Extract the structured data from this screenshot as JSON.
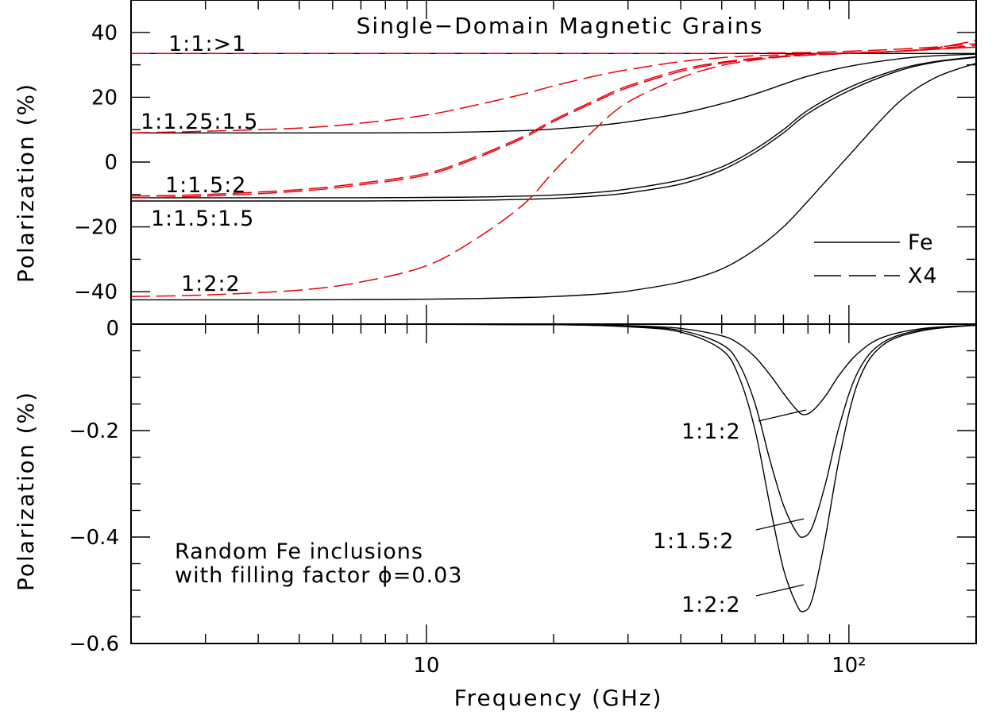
{
  "chart_data": [
    {
      "type": "line",
      "title": "Single−Domain Magnetic Grains",
      "xlabel": "",
      "ylabel": "Polarization (%)",
      "xscale": "log",
      "xlim": [
        2,
        200
      ],
      "ylim": [
        -50,
        50
      ],
      "y_ticks": [
        -40,
        -20,
        0,
        20,
        40
      ],
      "y_tick_labels": [
        "−40",
        "−20",
        "0",
        "20",
        "40"
      ],
      "legend": {
        "placement": "bottom-right",
        "entries": [
          {
            "label": "Fe",
            "style": "solid",
            "color": "#000000"
          },
          {
            "label": "X4",
            "style": "dashed",
            "color": "#000000"
          }
        ]
      },
      "colors": {
        "Fe": "#000000",
        "X4": "#e8000b"
      },
      "x": [
        2,
        3,
        5,
        7,
        10,
        13,
        17,
        20,
        25,
        30,
        40,
        50,
        60,
        70,
        80,
        100,
        130,
        160,
        200
      ],
      "series": [
        {
          "material": "Fe",
          "shape": "1:1:>1",
          "label_id": "s0",
          "values": [
            33.5,
            33.5,
            33.5,
            33.5,
            33.5,
            33.5,
            33.5,
            33.5,
            33.5,
            33.5,
            33.5,
            33.5,
            33.5,
            33.5,
            33.5,
            33.5,
            33.5,
            33.5,
            33.5
          ]
        },
        {
          "material": "Fe",
          "shape": "1:1.25:1.5",
          "label_id": "s1",
          "values": [
            9,
            9,
            9,
            9,
            9.1,
            9.3,
            9.7,
            10.2,
            11.2,
            12.4,
            15,
            18,
            21,
            24,
            26.5,
            29.5,
            31.8,
            32.8,
            33.3
          ]
        },
        {
          "material": "Fe",
          "shape": "1:1.5:2",
          "label_id": "s2",
          "values": [
            -11,
            -11,
            -11,
            -11,
            -10.9,
            -10.8,
            -10.5,
            -10.2,
            -9.4,
            -8.3,
            -5.5,
            -1.5,
            4,
            10,
            16,
            23,
            28.5,
            31,
            32.5
          ]
        },
        {
          "material": "Fe",
          "shape": "1:1.5:1.5",
          "label_id": "s3",
          "values": [
            -12,
            -12,
            -12,
            -12,
            -11.9,
            -11.8,
            -11.5,
            -11.2,
            -10.5,
            -9.5,
            -6.8,
            -2.5,
            3,
            9,
            15,
            22,
            28,
            30.8,
            32.3
          ]
        },
        {
          "material": "Fe",
          "shape": "1:2:2",
          "label_id": "s4",
          "values": [
            -42.5,
            -42.5,
            -42.5,
            -42.4,
            -42.3,
            -42.1,
            -41.8,
            -41.5,
            -40.8,
            -39.8,
            -37,
            -33,
            -27,
            -20,
            -12,
            2,
            18,
            26,
            30.5
          ]
        },
        {
          "material": "X4",
          "shape": "1:1:>1",
          "values": [
            33.5,
            33.5,
            33.5,
            33.5,
            33.5,
            33.5,
            33.5,
            33.5,
            33.5,
            33.5,
            33.5,
            33.5,
            33.6,
            33.7,
            33.8,
            34.2,
            34.8,
            35.5,
            36.5
          ]
        },
        {
          "material": "X4",
          "shape": "1:1.25:1.5",
          "values": [
            9,
            9.5,
            10.5,
            12,
            14.5,
            17.5,
            21,
            23.5,
            26.5,
            28.5,
            31,
            32.2,
            32.8,
            33.1,
            33.3,
            33.7,
            34.2,
            34.8,
            35.5
          ]
        },
        {
          "material": "X4",
          "shape": "1:1.5:2",
          "values": [
            -10.5,
            -10,
            -8.5,
            -6.5,
            -3.5,
            1.5,
            8,
            13,
            19,
            23.5,
            28.5,
            30.8,
            32,
            32.7,
            33.1,
            33.6,
            34.2,
            35,
            36
          ]
        },
        {
          "material": "X4",
          "shape": "1:1.5:1.5",
          "values": [
            -11,
            -10.5,
            -9,
            -7,
            -4,
            1,
            7.5,
            12.5,
            18.5,
            23,
            28,
            30.5,
            31.8,
            32.5,
            33,
            33.5,
            34.1,
            34.8,
            35.5
          ]
        },
        {
          "material": "X4",
          "shape": "1:2:2",
          "values": [
            -41.5,
            -41,
            -39.5,
            -37,
            -32,
            -24,
            -13,
            -3,
            10,
            18.5,
            26,
            29.8,
            31.5,
            32.5,
            33,
            33.5,
            34.2,
            35.2,
            37.5
          ]
        }
      ],
      "annotations": {
        "s0": "1:1:>1",
        "s1": "1:1.25:1.5",
        "s2": "1:1.5:2",
        "s3": "1:1.5:1.5",
        "s4": "1:2:2"
      }
    },
    {
      "type": "line",
      "title": "",
      "xlabel": "Frequency (GHz)",
      "ylabel": "Polarization (%)",
      "xscale": "log",
      "xlim": [
        2,
        200
      ],
      "ylim": [
        -0.6,
        0
      ],
      "x_ticks": [
        10,
        100
      ],
      "x_tick_labels": [
        "10",
        "10²"
      ],
      "y_ticks": [
        -0.6,
        -0.4,
        -0.2,
        0
      ],
      "y_tick_labels": [
        "−0.6",
        "−0.4",
        "−0.2",
        "0"
      ],
      "note_lines": [
        "Random Fe inclusions",
        "with filling factor ϕ=0.03"
      ],
      "x": [
        2,
        5,
        10,
        20,
        30,
        40,
        50,
        55,
        60,
        65,
        70,
        75,
        78,
        82,
        88,
        95,
        105,
        120,
        150,
        200
      ],
      "series": [
        {
          "material": "Fe",
          "shape": "1:1:2",
          "values": [
            0,
            0,
            -0.0005,
            -0.001,
            -0.003,
            -0.008,
            -0.022,
            -0.037,
            -0.062,
            -0.095,
            -0.13,
            -0.16,
            -0.17,
            -0.163,
            -0.135,
            -0.095,
            -0.055,
            -0.025,
            -0.008,
            -0.002
          ]
        },
        {
          "material": "Fe",
          "shape": "1:1.5:2",
          "values": [
            0,
            0,
            -0.0005,
            -0.001,
            -0.004,
            -0.012,
            -0.038,
            -0.075,
            -0.15,
            -0.255,
            -0.34,
            -0.39,
            -0.4,
            -0.38,
            -0.3,
            -0.19,
            -0.09,
            -0.035,
            -0.01,
            -0.002
          ]
        },
        {
          "material": "Fe",
          "shape": "1:2:2",
          "values": [
            0,
            0,
            -0.0005,
            -0.001,
            -0.005,
            -0.015,
            -0.048,
            -0.1,
            -0.2,
            -0.34,
            -0.46,
            -0.525,
            -0.54,
            -0.515,
            -0.4,
            -0.25,
            -0.11,
            -0.04,
            -0.012,
            -0.002
          ]
        }
      ],
      "annotations": [
        "1:1:2",
        "1:1.5:2",
        "1:2:2"
      ]
    }
  ]
}
